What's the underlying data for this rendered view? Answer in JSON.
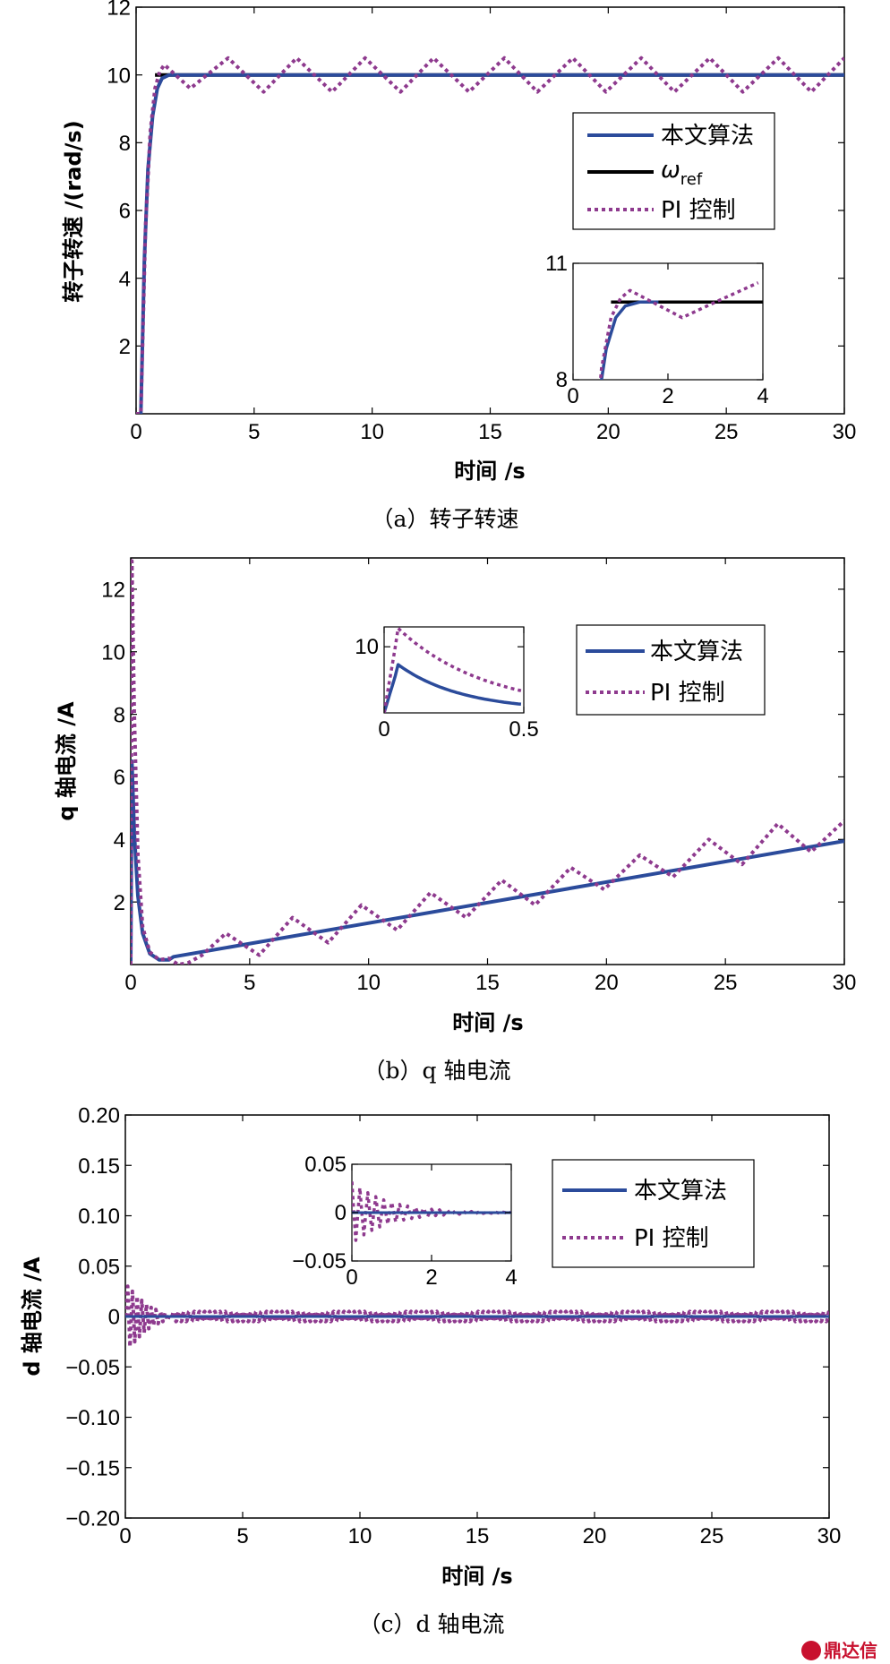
{
  "chart_data": [
    {
      "type": "line",
      "xlabel": "时间 /s",
      "ylabel": "转子转速 /(rad/s)",
      "caption": "（a）转子转速",
      "xlim": [
        0,
        30
      ],
      "ylim": [
        0,
        12
      ],
      "xticks": [
        0,
        5,
        10,
        15,
        20,
        25,
        30
      ],
      "yticks": [
        2,
        4,
        6,
        8,
        10,
        12
      ],
      "legend_position": "right",
      "series": [
        {
          "name": "本文算法",
          "color": "#2b4b9b",
          "style": "solid",
          "x": [
            0,
            0.2,
            0.35,
            0.5,
            0.7,
            0.9,
            1.1,
            1.4,
            1.8,
            30
          ],
          "y": [
            0,
            0,
            4.5,
            7.2,
            8.8,
            9.6,
            9.9,
            10.0,
            10.0,
            10.0
          ]
        },
        {
          "name": "ω_ref",
          "color": "#000000",
          "style": "solid",
          "x": [
            0.8,
            30
          ],
          "y": [
            10,
            10
          ]
        },
        {
          "name": "PI 控制",
          "color": "#8e3a8e",
          "style": "dotted",
          "x": [
            0,
            0.2,
            0.4,
            0.6,
            0.8,
            1.0,
            1.2,
            2.3,
            3.0,
            3.9,
            5.4,
            6.8,
            8.3,
            9.7,
            11.2,
            12.6,
            14.1,
            15.6,
            17.0,
            18.5,
            19.9,
            21.4,
            22.8,
            24.3,
            25.7,
            27.2,
            28.6,
            30.0
          ],
          "y": [
            0,
            0,
            5.5,
            8.3,
            9.6,
            10.1,
            10.3,
            9.6,
            10.0,
            10.5,
            9.5,
            10.5,
            9.5,
            10.5,
            9.5,
            10.5,
            9.5,
            10.5,
            9.5,
            10.5,
            9.5,
            10.5,
            9.5,
            10.5,
            9.5,
            10.5,
            9.5,
            10.5
          ]
        }
      ],
      "inset": {
        "xlim": [
          0,
          4
        ],
        "ylim": [
          8,
          11
        ],
        "xticks": [
          0,
          2,
          4
        ],
        "yticks": [
          8,
          11
        ]
      }
    },
    {
      "type": "line",
      "xlabel": "时间 /s",
      "ylabel": "q 轴电流 /A",
      "caption": "（b）q 轴电流",
      "xlim": [
        0,
        30
      ],
      "ylim": [
        0,
        13
      ],
      "xticks": [
        0,
        5,
        10,
        15,
        20,
        25,
        30
      ],
      "yticks": [
        2,
        4,
        6,
        8,
        10,
        12
      ],
      "legend_position": "right",
      "series": [
        {
          "name": "本文算法",
          "color": "#2b4b9b",
          "style": "solid",
          "x": [
            0,
            0.05,
            0.15,
            0.3,
            0.5,
            0.8,
            1.2,
            1.6,
            1.8,
            30
          ],
          "y": [
            0,
            6.5,
            4.2,
            2.2,
            1.0,
            0.35,
            0.15,
            0.15,
            0.25,
            3.95
          ]
        },
        {
          "name": "PI 控制",
          "color": "#8e3a8e",
          "style": "dotted",
          "x": [
            0,
            0.05,
            0.15,
            0.3,
            0.5,
            0.8,
            1.2,
            1.6,
            2.0,
            2.4,
            3.0,
            4.0,
            5.4,
            6.8,
            8.3,
            9.7,
            11.2,
            12.6,
            14.1,
            15.6,
            17.0,
            18.5,
            19.9,
            21.4,
            22.8,
            24.3,
            25.7,
            27.2,
            28.6,
            30.0
          ],
          "y": [
            0,
            12.9,
            8.0,
            3.5,
            1.2,
            0.4,
            0.15,
            0.2,
            0.0,
            0.05,
            0.3,
            1.0,
            0.3,
            1.5,
            0.7,
            1.9,
            1.1,
            2.3,
            1.5,
            2.7,
            1.9,
            3.1,
            2.4,
            3.5,
            2.8,
            4.0,
            3.2,
            4.5,
            3.6,
            4.6
          ]
        }
      ],
      "inset": {
        "xlim": [
          0,
          0.5
        ],
        "ylim": [
          0,
          13
        ],
        "xticks": [
          0,
          0.5
        ],
        "yticks": [
          10
        ]
      }
    },
    {
      "type": "line",
      "xlabel": "时间 /s",
      "ylabel": "d 轴电流 /A",
      "caption": "（c）d 轴电流",
      "xlim": [
        0,
        30
      ],
      "ylim": [
        -0.2,
        0.2
      ],
      "xticks": [
        0,
        5,
        10,
        15,
        20,
        25,
        30
      ],
      "yticks": [
        0.2,
        0.15,
        0.1,
        0.05,
        0,
        -0.05,
        -0.1,
        -0.15,
        -0.2
      ],
      "ytick_labels": [
        "0.20",
        "0.15",
        "0.10",
        "0.05",
        "0",
        "−0.05",
        "−0.10",
        "−0.15",
        "−0.20"
      ],
      "legend_position": "right",
      "series": [
        {
          "name": "本文算法",
          "color": "#2b4b9b",
          "style": "solid",
          "x": [
            0,
            30
          ],
          "y": [
            0,
            0
          ]
        },
        {
          "name": "PI 控制",
          "color": "#8e3a8e",
          "style": "dotted",
          "x": [
            0,
            0.1,
            0.2,
            0.3,
            0.4,
            0.5,
            0.6,
            0.7,
            0.8,
            0.9,
            1.0,
            1.1,
            1.2,
            1.3,
            1.4,
            1.5,
            1.6,
            1.7,
            1.8,
            1.9,
            2.0
          ],
          "y": [
            0,
            0.03,
            -0.03,
            0.025,
            -0.025,
            0.02,
            -0.02,
            0.016,
            -0.016,
            0.012,
            -0.012,
            0.009,
            -0.009,
            0.007,
            -0.007,
            0.005,
            -0.005,
            0.004,
            -0.004,
            0.003,
            0
          ],
          "tail_amplitude": 0.005
        },
        {
          "name": "PI 控制 (inset)",
          "color": "#8e3a8e",
          "style": "dotted"
        }
      ],
      "inset": {
        "xlim": [
          0,
          4
        ],
        "ylim": [
          -0.05,
          0.05
        ],
        "xticks": [
          0,
          2,
          4
        ],
        "yticks": [
          0.05,
          0,
          -0.05
        ],
        "ytick_labels": [
          "0.05",
          "0",
          "−0.05"
        ]
      }
    }
  ],
  "legend": {
    "ours": "本文算法",
    "ref_main": "ω",
    "ref_sub": "ref",
    "pi": "PI 控制"
  },
  "watermark": "鼎达信",
  "colors": {
    "ours": "#2b4b9b",
    "ref": "#000000",
    "pi": "#8e3a8e"
  }
}
